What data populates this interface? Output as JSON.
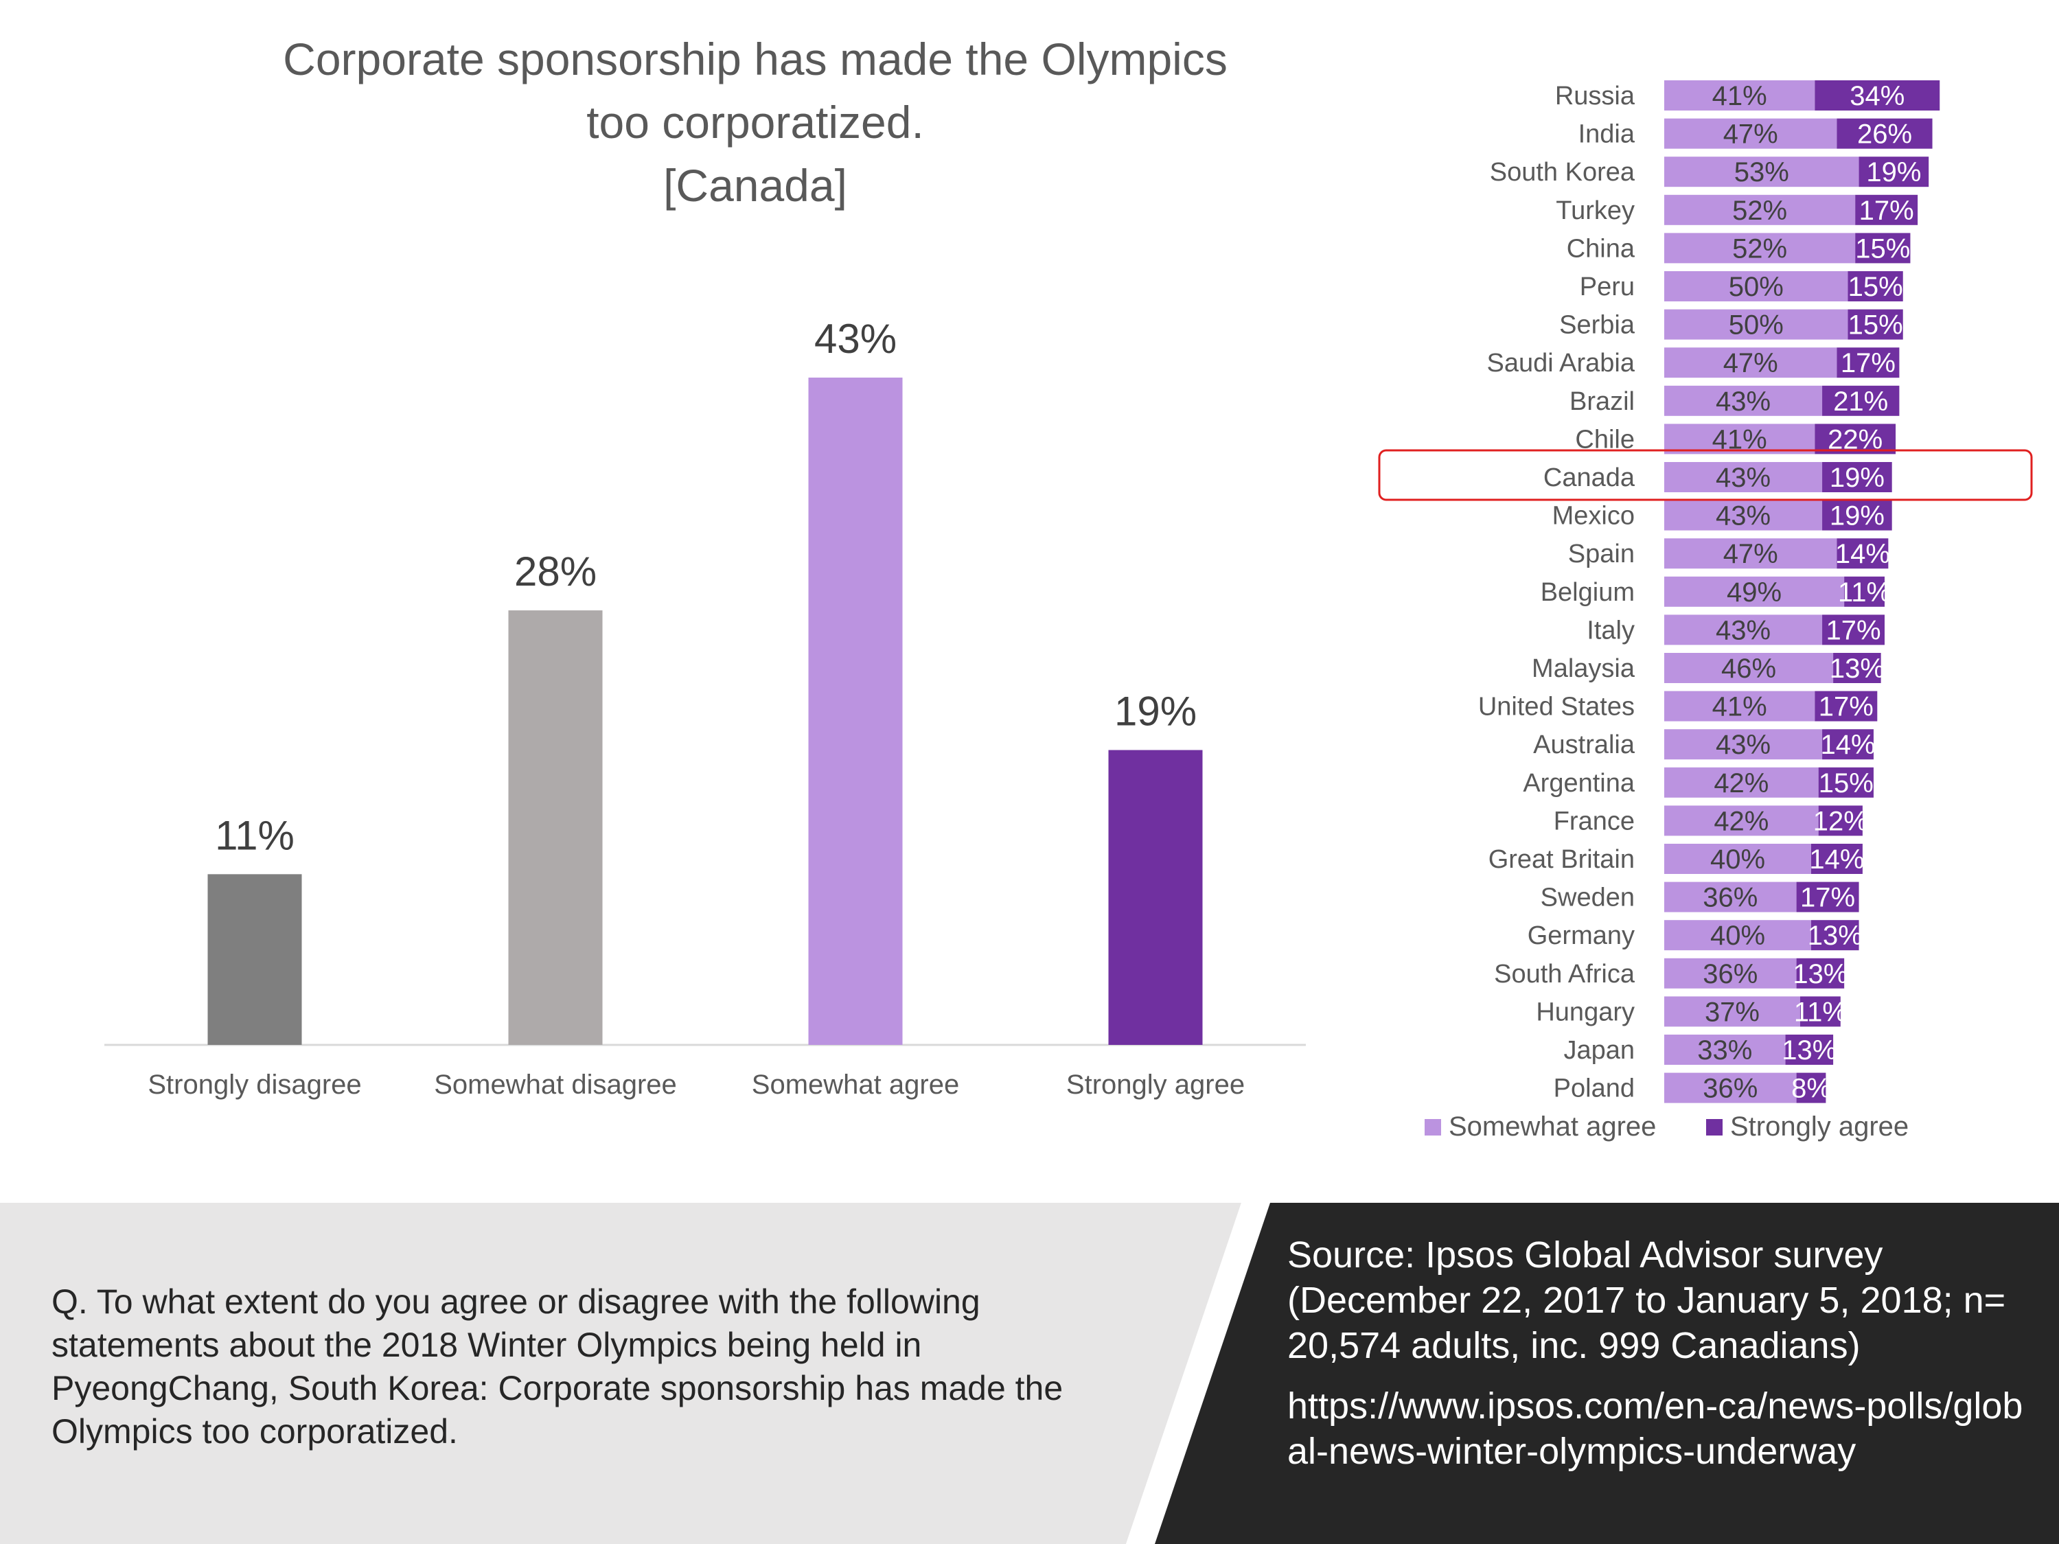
{
  "title": {
    "line1": "Corporate sponsorship has made the Olympics",
    "line2": "too corporatized.",
    "line3": "[Canada]"
  },
  "chart_data": [
    {
      "type": "bar",
      "categories": [
        "Strongly disagree",
        "Somewhat disagree",
        "Somewhat agree",
        "Strongly agree"
      ],
      "values": [
        11,
        28,
        43,
        19
      ],
      "value_labels": [
        "11%",
        "28%",
        "43%",
        "19%"
      ],
      "colors": [
        "#7f7f7f",
        "#aeaaaa",
        "#bb93e0",
        "#7030a0"
      ],
      "ylim": [
        0,
        50
      ],
      "grid": false,
      "unit": "%"
    },
    {
      "type": "bar",
      "orientation": "horizontal",
      "stacked": true,
      "categories": [
        "Russia",
        "India",
        "South Korea",
        "Turkey",
        "China",
        "Peru",
        "Serbia",
        "Saudi Arabia",
        "Brazil",
        "Chile",
        "Canada",
        "Mexico",
        "Spain",
        "Belgium",
        "Italy",
        "Malaysia",
        "United States",
        "Australia",
        "Argentina",
        "France",
        "Great Britain",
        "Sweden",
        "Germany",
        "South Africa",
        "Hungary",
        "Japan",
        "Poland"
      ],
      "series": [
        {
          "name": "Somewhat agree",
          "color": "#bb93e0",
          "values": [
            41,
            47,
            53,
            52,
            52,
            50,
            50,
            47,
            43,
            41,
            43,
            43,
            47,
            49,
            43,
            46,
            41,
            43,
            42,
            42,
            40,
            36,
            40,
            36,
            37,
            33,
            36
          ],
          "labels": [
            "41%",
            "47%",
            "53%",
            "52%",
            "52%",
            "50%",
            "50%",
            "47%",
            "43%",
            "41%",
            "43%",
            "43%",
            "47%",
            "49%",
            "43%",
            "46%",
            "41%",
            "43%",
            "42%",
            "42%",
            "40%",
            "36%",
            "40%",
            "36%",
            "37%",
            "33%",
            "36%"
          ]
        },
        {
          "name": "Strongly agree",
          "color": "#7030a0",
          "values": [
            34,
            26,
            19,
            17,
            15,
            15,
            15,
            17,
            21,
            22,
            19,
            19,
            14,
            11,
            17,
            13,
            17,
            14,
            15,
            12,
            14,
            17,
            13,
            13,
            11,
            13,
            8
          ],
          "labels": [
            "34%",
            "26%",
            "19%",
            "17%",
            "15%",
            "15%",
            "15%",
            "17%",
            "21%",
            "22%",
            "19%",
            "19%",
            "14%",
            "11%",
            "17%",
            "13%",
            "17%",
            "14%",
            "15%",
            "12%",
            "14%",
            "17%",
            "13%",
            "13%",
            "11%",
            "13%",
            "8%"
          ]
        }
      ],
      "highlight": "Canada",
      "highlight_color": "#e02020",
      "legend": [
        "Somewhat agree",
        "Strongly agree"
      ],
      "legend_position": "bottom",
      "grid": false
    }
  ],
  "question": "Q.  To what extent do you agree or disagree with the following statements about the 2018 Winter Olympics being held in PyeongChang, South Korea: Corporate sponsorship has made the Olympics too corporatized.",
  "source": {
    "text": "Source: Ipsos Global Advisor survey (December 22, 2017 to January 5, 2018; n= 20,574 adults, inc. 999 Canadians)",
    "url": "https://www.ipsos.com/en-ca/news-polls/global-news-winter-olympics-underway"
  },
  "colors": {
    "question_band": "#e7e6e6",
    "source_band": "#262626"
  }
}
